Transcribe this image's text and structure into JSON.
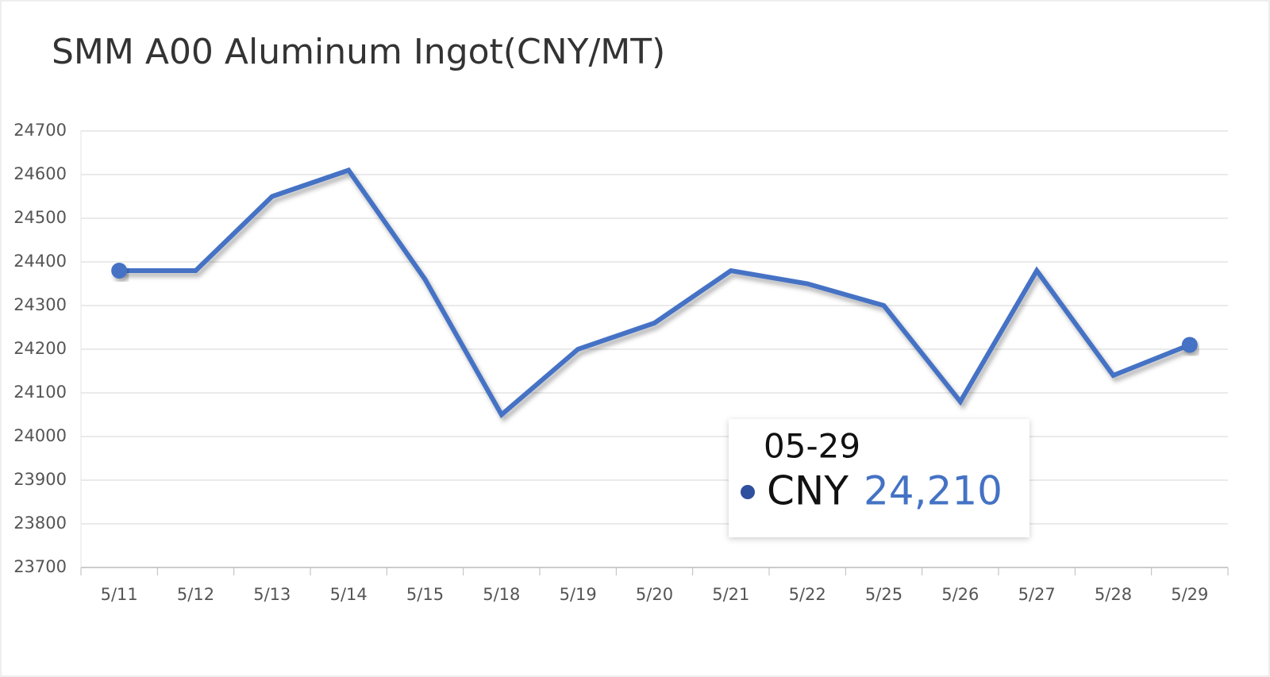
{
  "chart_data": {
    "type": "line",
    "title": "SMM A00 Aluminum Ingot(CNY/MT)",
    "categories": [
      "5/11",
      "5/12",
      "5/13",
      "5/14",
      "5/15",
      "5/18",
      "5/19",
      "5/20",
      "5/21",
      "5/22",
      "5/25",
      "5/26",
      "5/27",
      "5/28",
      "5/29"
    ],
    "series": [
      {
        "name": "CNY",
        "color": "#4472c4",
        "values": [
          24380,
          24380,
          24550,
          24610,
          24360,
          24050,
          24200,
          24260,
          24380,
          24350,
          24300,
          24080,
          24380,
          24140,
          24210
        ],
        "value_labels": [
          null,
          null,
          null,
          null,
          null,
          null,
          null,
          null,
          null,
          null,
          null,
          null,
          null,
          null,
          "24,210"
        ]
      }
    ],
    "tooltip_title": "05-29",
    "ylim": [
      23700,
      24700
    ],
    "yticks": [
      23700,
      23800,
      23900,
      24000,
      24100,
      24200,
      24300,
      24400,
      24500,
      24600,
      24700
    ],
    "grid": true
  }
}
